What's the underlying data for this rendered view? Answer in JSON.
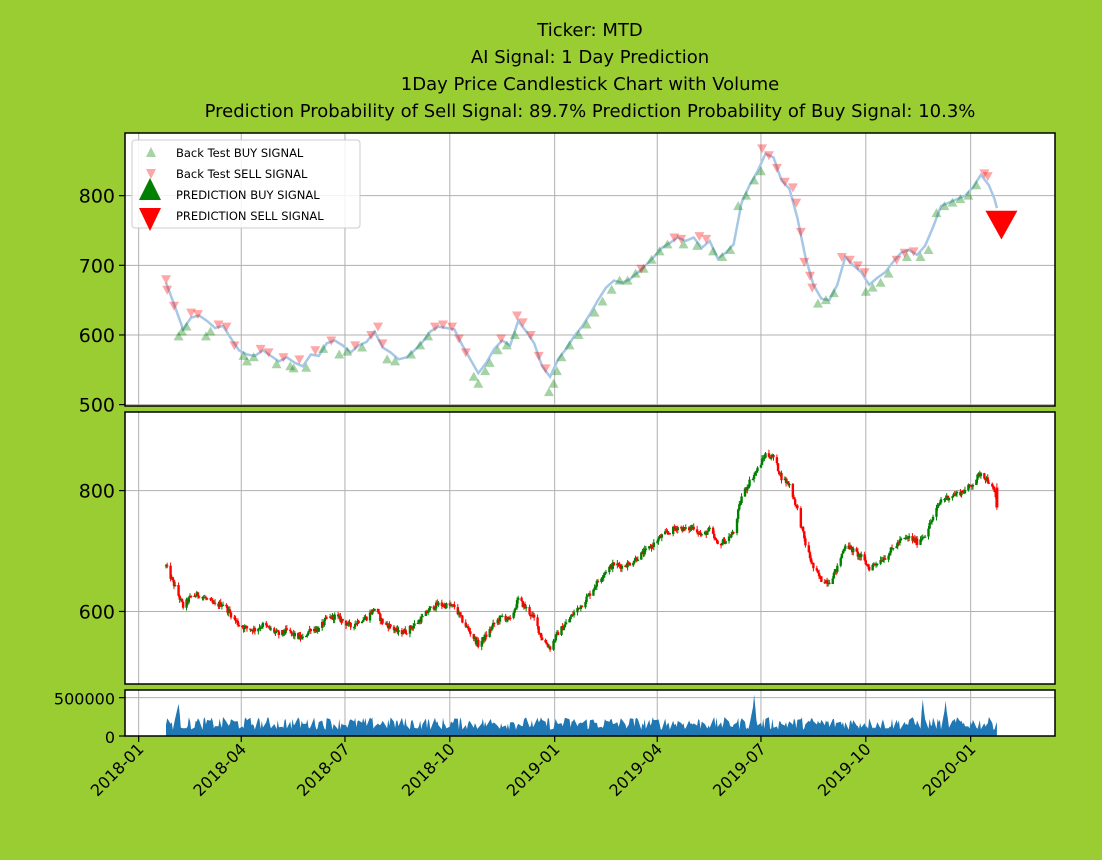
{
  "figure": {
    "background": "#9acd32",
    "title_lines": [
      "Ticker: MTD",
      "AI Signal: 1 Day Prediction",
      "1Day Price Candlestick Chart with Volume",
      "Prediction Probability of Sell Signal: 89.7%      Prediction Probability of Buy Signal: 10.3%"
    ]
  },
  "colors": {
    "buy": "#008000",
    "sell": "#ff0000",
    "price_line": "#a6c8e6",
    "volume": "#1f77b4",
    "grid": "#b0b0b0"
  },
  "chart_data": [
    {
      "id": "signals",
      "type": "scatter",
      "ylim": [
        498,
        890
      ],
      "yticks": [
        500,
        600,
        700,
        800
      ],
      "grid": true,
      "legend": {
        "placement": "upper-left",
        "entries": [
          "Back Test BUY SIGNAL",
          "Back Test SELL SIGNAL",
          "PREDICTION BUY SIGNAL",
          "PREDICTION SELL SIGNAL"
        ]
      },
      "price_series": [
        [
          "2018-01-25",
          675
        ],
        [
          "2018-02-02",
          640
        ],
        [
          "2018-02-09",
          608
        ],
        [
          "2018-02-16",
          625
        ],
        [
          "2018-02-23",
          628
        ],
        [
          "2018-03-02",
          620
        ],
        [
          "2018-03-09",
          610
        ],
        [
          "2018-03-16",
          613
        ],
        [
          "2018-03-23",
          595
        ],
        [
          "2018-03-30",
          578
        ],
        [
          "2018-04-06",
          572
        ],
        [
          "2018-04-13",
          570
        ],
        [
          "2018-04-20",
          578
        ],
        [
          "2018-04-27",
          570
        ],
        [
          "2018-05-04",
          562
        ],
        [
          "2018-05-11",
          568
        ],
        [
          "2018-05-18",
          560
        ],
        [
          "2018-05-25",
          555
        ],
        [
          "2018-06-01",
          572
        ],
        [
          "2018-06-08",
          570
        ],
        [
          "2018-06-15",
          588
        ],
        [
          "2018-06-22",
          592
        ],
        [
          "2018-06-29",
          585
        ],
        [
          "2018-07-06",
          575
        ],
        [
          "2018-07-13",
          585
        ],
        [
          "2018-07-20",
          590
        ],
        [
          "2018-07-27",
          605
        ],
        [
          "2018-08-03",
          582
        ],
        [
          "2018-08-10",
          575
        ],
        [
          "2018-08-17",
          565
        ],
        [
          "2018-08-24",
          568
        ],
        [
          "2018-08-31",
          578
        ],
        [
          "2018-09-07",
          590
        ],
        [
          "2018-09-14",
          605
        ],
        [
          "2018-09-21",
          612
        ],
        [
          "2018-09-28",
          610
        ],
        [
          "2018-10-05",
          608
        ],
        [
          "2018-10-12",
          585
        ],
        [
          "2018-10-19",
          565
        ],
        [
          "2018-10-26",
          545
        ],
        [
          "2018-11-02",
          560
        ],
        [
          "2018-11-09",
          580
        ],
        [
          "2018-11-16",
          592
        ],
        [
          "2018-11-23",
          585
        ],
        [
          "2018-11-30",
          620
        ],
        [
          "2018-12-07",
          605
        ],
        [
          "2018-12-14",
          588
        ],
        [
          "2018-12-21",
          555
        ],
        [
          "2018-12-28",
          540
        ],
        [
          "2019-01-04",
          565
        ],
        [
          "2019-01-11",
          580
        ],
        [
          "2019-01-18",
          598
        ],
        [
          "2019-01-25",
          612
        ],
        [
          "2019-02-01",
          630
        ],
        [
          "2019-02-08",
          650
        ],
        [
          "2019-02-15",
          668
        ],
        [
          "2019-02-22",
          678
        ],
        [
          "2019-03-01",
          675
        ],
        [
          "2019-03-08",
          680
        ],
        [
          "2019-03-15",
          690
        ],
        [
          "2019-03-22",
          700
        ],
        [
          "2019-03-29",
          712
        ],
        [
          "2019-04-05",
          725
        ],
        [
          "2019-04-12",
          732
        ],
        [
          "2019-04-19",
          740
        ],
        [
          "2019-04-26",
          735
        ],
        [
          "2019-05-03",
          740
        ],
        [
          "2019-05-10",
          725
        ],
        [
          "2019-05-17",
          735
        ],
        [
          "2019-05-24",
          710
        ],
        [
          "2019-05-31",
          718
        ],
        [
          "2019-06-07",
          730
        ],
        [
          "2019-06-14",
          790
        ],
        [
          "2019-06-21",
          815
        ],
        [
          "2019-06-28",
          835
        ],
        [
          "2019-07-05",
          860
        ],
        [
          "2019-07-12",
          855
        ],
        [
          "2019-07-19",
          822
        ],
        [
          "2019-07-26",
          810
        ],
        [
          "2019-08-02",
          768
        ],
        [
          "2019-08-09",
          712
        ],
        [
          "2019-08-16",
          672
        ],
        [
          "2019-08-23",
          652
        ],
        [
          "2019-08-30",
          650
        ],
        [
          "2019-09-06",
          672
        ],
        [
          "2019-09-13",
          712
        ],
        [
          "2019-09-20",
          700
        ],
        [
          "2019-09-27",
          690
        ],
        [
          "2019-10-04",
          672
        ],
        [
          "2019-10-11",
          682
        ],
        [
          "2019-10-18",
          690
        ],
        [
          "2019-10-25",
          705
        ],
        [
          "2019-11-01",
          718
        ],
        [
          "2019-11-08",
          722
        ],
        [
          "2019-11-15",
          715
        ],
        [
          "2019-11-22",
          728
        ],
        [
          "2019-11-29",
          755
        ],
        [
          "2019-12-06",
          785
        ],
        [
          "2019-12-13",
          790
        ],
        [
          "2019-12-20",
          795
        ],
        [
          "2019-12-27",
          800
        ],
        [
          "2020-01-03",
          812
        ],
        [
          "2020-01-10",
          830
        ],
        [
          "2020-01-17",
          815
        ],
        [
          "2020-01-22",
          795
        ],
        [
          "2020-01-24",
          782
        ]
      ],
      "buy_signals": [
        [
          "2018-02-05",
          598
        ],
        [
          "2018-02-08",
          605
        ],
        [
          "2018-02-12",
          612
        ],
        [
          "2018-03-01",
          598
        ],
        [
          "2018-03-05",
          605
        ],
        [
          "2018-04-03",
          570
        ],
        [
          "2018-04-06",
          562
        ],
        [
          "2018-04-12",
          568
        ],
        [
          "2018-05-02",
          558
        ],
        [
          "2018-05-14",
          555
        ],
        [
          "2018-05-17",
          552
        ],
        [
          "2018-05-28",
          553
        ],
        [
          "2018-06-12",
          580
        ],
        [
          "2018-06-26",
          572
        ],
        [
          "2018-07-03",
          576
        ],
        [
          "2018-07-16",
          582
        ],
        [
          "2018-08-07",
          565
        ],
        [
          "2018-08-14",
          562
        ],
        [
          "2018-08-28",
          572
        ],
        [
          "2018-09-05",
          585
        ],
        [
          "2018-09-12",
          598
        ],
        [
          "2018-10-22",
          540
        ],
        [
          "2018-10-26",
          530
        ],
        [
          "2018-11-01",
          548
        ],
        [
          "2018-11-05",
          560
        ],
        [
          "2018-11-12",
          578
        ],
        [
          "2018-11-20",
          585
        ],
        [
          "2018-11-27",
          600
        ],
        [
          "2018-12-27",
          518
        ],
        [
          "2018-12-31",
          530
        ],
        [
          "2019-01-03",
          548
        ],
        [
          "2019-01-07",
          568
        ],
        [
          "2019-01-14",
          585
        ],
        [
          "2019-01-22",
          600
        ],
        [
          "2019-01-29",
          615
        ],
        [
          "2019-02-05",
          632
        ],
        [
          "2019-02-12",
          648
        ],
        [
          "2019-02-20",
          665
        ],
        [
          "2019-02-27",
          678
        ],
        [
          "2019-03-06",
          678
        ],
        [
          "2019-03-13",
          688
        ],
        [
          "2019-03-20",
          695
        ],
        [
          "2019-03-27",
          708
        ],
        [
          "2019-04-03",
          720
        ],
        [
          "2019-04-10",
          730
        ],
        [
          "2019-04-24",
          730
        ],
        [
          "2019-05-06",
          728
        ],
        [
          "2019-05-20",
          720
        ],
        [
          "2019-05-28",
          712
        ],
        [
          "2019-06-04",
          722
        ],
        [
          "2019-06-11",
          785
        ],
        [
          "2019-06-18",
          800
        ],
        [
          "2019-06-25",
          822
        ],
        [
          "2019-07-01",
          835
        ],
        [
          "2019-08-20",
          645
        ],
        [
          "2019-08-27",
          650
        ],
        [
          "2019-09-03",
          660
        ],
        [
          "2019-10-01",
          662
        ],
        [
          "2019-10-07",
          668
        ],
        [
          "2019-10-14",
          675
        ],
        [
          "2019-10-21",
          688
        ],
        [
          "2019-11-06",
          712
        ],
        [
          "2019-11-18",
          712
        ],
        [
          "2019-11-25",
          722
        ],
        [
          "2019-12-02",
          775
        ],
        [
          "2019-12-09",
          785
        ],
        [
          "2019-12-16",
          790
        ],
        [
          "2019-12-23",
          795
        ],
        [
          "2019-12-30",
          800
        ],
        [
          "2020-01-06",
          815
        ]
      ],
      "sell_signals": [
        [
          "2018-01-25",
          680
        ],
        [
          "2018-01-26",
          665
        ],
        [
          "2018-02-01",
          642
        ],
        [
          "2018-02-16",
          632
        ],
        [
          "2018-02-22",
          630
        ],
        [
          "2018-03-12",
          615
        ],
        [
          "2018-03-19",
          612
        ],
        [
          "2018-03-26",
          585
        ],
        [
          "2018-04-18",
          580
        ],
        [
          "2018-04-25",
          575
        ],
        [
          "2018-05-08",
          568
        ],
        [
          "2018-05-22",
          565
        ],
        [
          "2018-06-05",
          578
        ],
        [
          "2018-06-19",
          592
        ],
        [
          "2018-07-10",
          585
        ],
        [
          "2018-07-24",
          600
        ],
        [
          "2018-07-30",
          612
        ],
        [
          "2018-08-03",
          588
        ],
        [
          "2018-09-18",
          612
        ],
        [
          "2018-09-25",
          615
        ],
        [
          "2018-10-03",
          612
        ],
        [
          "2018-10-09",
          595
        ],
        [
          "2018-10-15",
          575
        ],
        [
          "2018-11-15",
          595
        ],
        [
          "2018-11-29",
          628
        ],
        [
          "2018-12-04",
          618
        ],
        [
          "2018-12-11",
          600
        ],
        [
          "2018-12-18",
          570
        ],
        [
          "2018-12-24",
          552
        ],
        [
          "2019-03-18",
          695
        ],
        [
          "2019-04-16",
          740
        ],
        [
          "2019-04-22",
          738
        ],
        [
          "2019-05-08",
          742
        ],
        [
          "2019-05-14",
          738
        ],
        [
          "2019-07-02",
          868
        ],
        [
          "2019-07-08",
          858
        ],
        [
          "2019-07-15",
          840
        ],
        [
          "2019-07-22",
          820
        ],
        [
          "2019-07-29",
          812
        ],
        [
          "2019-08-01",
          790
        ],
        [
          "2019-08-05",
          748
        ],
        [
          "2019-08-08",
          705
        ],
        [
          "2019-08-13",
          685
        ],
        [
          "2019-08-15",
          668
        ],
        [
          "2019-09-10",
          712
        ],
        [
          "2019-09-17",
          708
        ],
        [
          "2019-09-24",
          700
        ],
        [
          "2019-09-30",
          690
        ],
        [
          "2019-10-28",
          708
        ],
        [
          "2019-11-04",
          718
        ],
        [
          "2019-11-12",
          720
        ],
        [
          "2020-01-13",
          832
        ],
        [
          "2020-01-16",
          828
        ]
      ],
      "prediction_sell": [
        [
          "2020-01-28",
          760
        ]
      ],
      "prediction_buy": []
    },
    {
      "id": "candlestick",
      "type": "candlestick",
      "ylim": [
        480,
        930
      ],
      "yticks": [
        600,
        800
      ],
      "grid": true,
      "last_candle_color": "red"
    },
    {
      "id": "volume",
      "type": "area",
      "ylim": [
        0,
        600000
      ],
      "yticks": [
        0,
        500000
      ],
      "grid": true,
      "typical_range": [
        80000,
        320000
      ],
      "peaks": [
        [
          "2018-02-05",
          420000
        ],
        [
          "2019-06-25",
          540000
        ],
        [
          "2019-11-20",
          480000
        ],
        [
          "2019-12-10",
          460000
        ]
      ]
    }
  ],
  "x_axis": {
    "range": [
      "2017-12-20",
      "2020-03-15"
    ],
    "tick_labels": [
      "2018-01",
      "2018-04",
      "2018-07",
      "2018-10",
      "2019-01",
      "2019-04",
      "2019-07",
      "2019-10",
      "2020-01"
    ],
    "tick_dates": [
      "2018-01-01",
      "2018-04-01",
      "2018-07-01",
      "2018-10-01",
      "2019-01-01",
      "2019-04-01",
      "2019-07-01",
      "2019-10-01",
      "2020-01-01"
    ]
  }
}
